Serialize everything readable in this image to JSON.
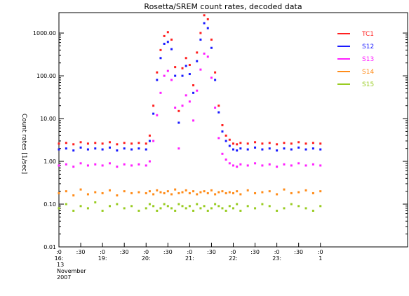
{
  "chart_data": {
    "type": "scatter",
    "title": "Rosetta/SREM count rates, decoded data",
    "xlabel": "",
    "ylabel": "Count rates [1/sec]",
    "yscale": "log",
    "ylim": [
      0.01,
      3000
    ],
    "xlim": [
      "2007-11-13 16:00",
      "2007-11-13 24:00"
    ],
    "grid": false,
    "legend_position": "top-right",
    "y_ticks": [
      {
        "value": 0.01,
        "label": "0.01"
      },
      {
        "value": 0.1,
        "label": "0.10"
      },
      {
        "value": 1,
        "label": "1.00"
      },
      {
        "value": 10,
        "label": "10.00"
      },
      {
        "value": 100,
        "label": "100.00"
      },
      {
        "value": 1000,
        "label": "1000.00"
      }
    ],
    "x_ticks": [
      {
        "x": "2007-11-13 16:00",
        "label_top": ":0",
        "label_bottom": "16:"
      },
      {
        "x": "2007-11-13 16:30",
        "label_top": ":30",
        "label_bottom": ""
      },
      {
        "x": "2007-11-13 17:00",
        "label_top": ":0",
        "label_bottom": "19:"
      },
      {
        "x": "2007-11-13 17:30",
        "label_top": ":30",
        "label_bottom": ""
      },
      {
        "x": "2007-11-13 18:00",
        "label_top": ":0",
        "label_bottom": "20:"
      },
      {
        "x": "2007-11-13 18:30",
        "label_top": ":30",
        "label_bottom": ""
      },
      {
        "x": "2007-11-13 19:00",
        "label_top": ":0",
        "label_bottom": "21:"
      },
      {
        "x": "2007-11-13 19:30",
        "label_top": ":30",
        "label_bottom": ""
      },
      {
        "x": "2007-11-13 20:00",
        "label_top": ":0",
        "label_bottom": "22:"
      },
      {
        "x": "2007-11-13 20:30",
        "label_top": ":30",
        "label_bottom": ""
      },
      {
        "x": "2007-11-13 21:00",
        "label_top": ":0",
        "label_bottom": "23:"
      },
      {
        "x": "2007-11-13 21:30",
        "label_top": ":30",
        "label_bottom": ""
      },
      {
        "x": "2007-11-13 22:00",
        "label_top": ":0",
        "label_bottom": "1"
      }
    ],
    "date_label": [
      "13",
      "November",
      "2007"
    ],
    "x": [
      "16:00",
      "16:10",
      "16:20",
      "16:30",
      "16:40",
      "16:50",
      "17:00",
      "17:10",
      "17:20",
      "17:30",
      "17:40",
      "17:50",
      "18:00",
      "18:05",
      "18:10",
      "18:15",
      "18:20",
      "18:25",
      "18:30",
      "18:35",
      "18:40",
      "18:45",
      "18:50",
      "18:55",
      "19:00",
      "19:05",
      "19:10",
      "19:15",
      "19:20",
      "19:25",
      "19:30",
      "19:35",
      "19:40",
      "19:45",
      "19:50",
      "19:55",
      "20:00",
      "20:05",
      "20:10",
      "20:20",
      "20:30",
      "20:40",
      "20:50",
      "21:00",
      "21:10",
      "21:20",
      "21:30",
      "21:40",
      "21:50",
      "22:00"
    ],
    "series": [
      {
        "name": "TC1",
        "color": "#ff2020",
        "values": [
          2.6,
          2.7,
          2.5,
          2.8,
          2.6,
          2.7,
          2.6,
          2.8,
          2.5,
          2.7,
          2.6,
          2.7,
          2.6,
          4,
          20,
          120,
          400,
          850,
          1050,
          700,
          160,
          15,
          150,
          260,
          180,
          60,
          350,
          1000,
          2600,
          2100,
          700,
          120,
          20,
          7,
          4,
          3.2,
          2.6,
          2.5,
          2.7,
          2.6,
          2.8,
          2.6,
          2.7,
          2.5,
          2.7,
          2.6,
          2.8,
          2.6,
          2.7,
          2.6
        ]
      },
      {
        "name": "S12",
        "color": "#1a1aff",
        "values": [
          1.9,
          2.0,
          1.8,
          2.1,
          1.9,
          2.0,
          1.9,
          2.1,
          1.8,
          2.0,
          1.9,
          2.0,
          1.9,
          3,
          13,
          80,
          260,
          560,
          620,
          420,
          100,
          8,
          100,
          170,
          110,
          40,
          220,
          700,
          1700,
          1300,
          450,
          80,
          14,
          5,
          3,
          2.3,
          1.9,
          1.8,
          2.0,
          1.9,
          2.1,
          1.9,
          2.0,
          1.8,
          2.0,
          1.9,
          2.1,
          1.9,
          2.0,
          1.9
        ]
      },
      {
        "name": "S13",
        "color": "#ff20ff",
        "values": [
          0.8,
          0.85,
          0.75,
          0.9,
          0.8,
          0.85,
          0.8,
          0.9,
          0.75,
          0.85,
          0.8,
          0.85,
          0.8,
          1.0,
          3,
          12,
          40,
          100,
          130,
          80,
          18,
          2,
          20,
          35,
          25,
          9,
          45,
          140,
          330,
          280,
          90,
          18,
          3.5,
          1.5,
          1.1,
          0.9,
          0.8,
          0.75,
          0.85,
          0.8,
          0.9,
          0.8,
          0.85,
          0.75,
          0.85,
          0.8,
          0.9,
          0.8,
          0.85,
          0.8
        ]
      },
      {
        "name": "S14",
        "color": "#ff8c1a",
        "values": [
          0.18,
          0.2,
          0.16,
          0.22,
          0.17,
          0.19,
          0.18,
          0.21,
          0.16,
          0.2,
          0.18,
          0.19,
          0.18,
          0.2,
          0.17,
          0.21,
          0.19,
          0.18,
          0.2,
          0.17,
          0.22,
          0.18,
          0.19,
          0.21,
          0.18,
          0.2,
          0.17,
          0.19,
          0.2,
          0.18,
          0.21,
          0.17,
          0.19,
          0.2,
          0.18,
          0.19,
          0.18,
          0.2,
          0.17,
          0.21,
          0.18,
          0.19,
          0.2,
          0.17,
          0.22,
          0.18,
          0.19,
          0.21,
          0.18,
          0.2
        ]
      },
      {
        "name": "S15",
        "color": "#99cc22",
        "values": [
          0.08,
          0.1,
          0.07,
          0.09,
          0.08,
          0.11,
          0.07,
          0.09,
          0.1,
          0.08,
          0.09,
          0.07,
          0.08,
          0.1,
          0.09,
          0.07,
          0.08,
          0.1,
          0.09,
          0.08,
          0.07,
          0.1,
          0.09,
          0.08,
          0.09,
          0.07,
          0.1,
          0.08,
          0.09,
          0.07,
          0.08,
          0.1,
          0.09,
          0.08,
          0.07,
          0.09,
          0.08,
          0.1,
          0.07,
          0.09,
          0.08,
          0.1,
          0.09,
          0.07,
          0.08,
          0.1,
          0.09,
          0.08,
          0.07,
          0.09
        ]
      }
    ]
  }
}
